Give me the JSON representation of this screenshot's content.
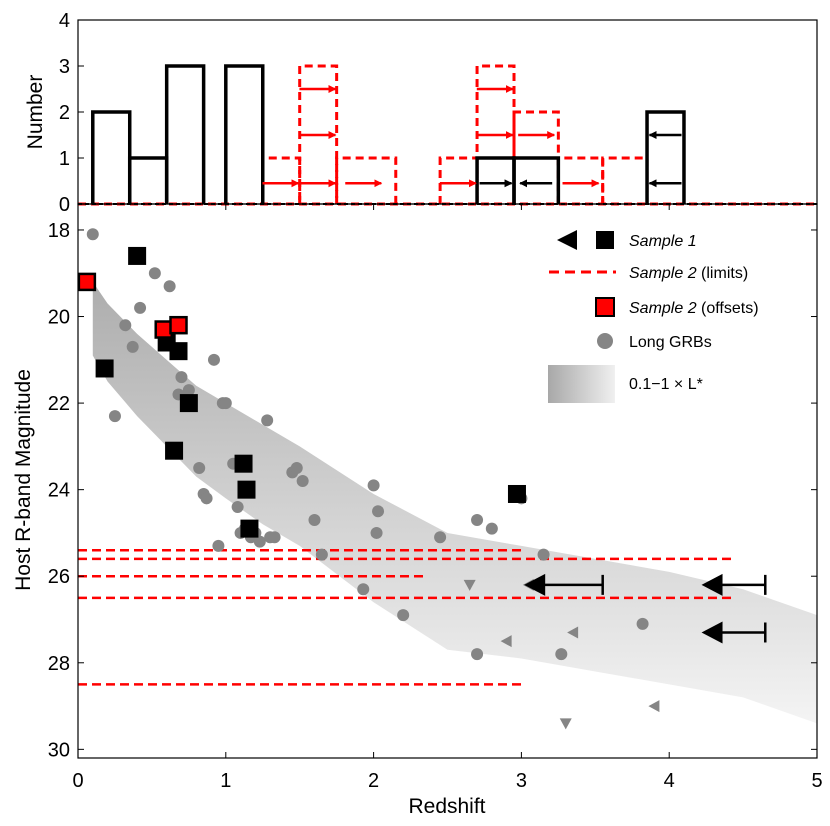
{
  "chart_data": [
    {
      "type": "histogram",
      "ylabel": "Number",
      "yticks": [
        "0",
        "1",
        "2",
        "3",
        "4"
      ],
      "ylim": [
        0,
        4
      ],
      "xlim": [
        0,
        5
      ],
      "bar_edges": [
        0.1,
        0.35,
        0.6,
        0.85,
        1.0,
        1.25,
        1.5,
        1.75,
        2.15,
        2.45,
        2.7,
        2.95,
        3.25,
        3.55,
        3.85,
        4.1,
        4.4
      ],
      "sample1": {
        "name": "Sample 1 (black)",
        "bins": [
          {
            "x0": 0.1,
            "x1": 0.35,
            "count": 2
          },
          {
            "x0": 0.35,
            "x1": 0.6,
            "count": 1
          },
          {
            "x0": 0.6,
            "x1": 0.85,
            "count": 3
          },
          {
            "x0": 1.0,
            "x1": 1.25,
            "count": 3
          },
          {
            "x0": 2.7,
            "x1": 2.95,
            "count": 1,
            "arrow": "right"
          },
          {
            "x0": 2.95,
            "x1": 3.25,
            "count": 1,
            "arrow": "left"
          },
          {
            "x0": 3.85,
            "x1": 4.1,
            "count": 2,
            "arrow": "left"
          }
        ]
      },
      "sample2": {
        "name": "Sample 2 limits (red dashed)",
        "bins": [
          {
            "x0": 1.25,
            "x1": 1.5,
            "count": 1
          },
          {
            "x0": 1.5,
            "x1": 1.75,
            "count": 3
          },
          {
            "x0": 1.75,
            "x1": 2.15,
            "count": 1
          },
          {
            "x0": 2.45,
            "x1": 2.7,
            "count": 1
          },
          {
            "x0": 2.7,
            "x1": 2.95,
            "count": 3
          },
          {
            "x0": 2.95,
            "x1": 3.25,
            "count": 2
          },
          {
            "x0": 3.25,
            "x1": 3.55,
            "count": 1
          },
          {
            "x0": 3.55,
            "x1": 3.85,
            "count": 1
          }
        ],
        "arrows": [
          {
            "x": 1.37,
            "y": 0.45
          },
          {
            "x": 1.62,
            "y": 0.45
          },
          {
            "x": 1.93,
            "y": 0.45
          },
          {
            "x": 1.62,
            "y": 1.5
          },
          {
            "x": 1.62,
            "y": 2.5
          },
          {
            "x": 2.57,
            "y": 0.45
          },
          {
            "x": 2.82,
            "y": 1.5
          },
          {
            "x": 2.82,
            "y": 2.5
          },
          {
            "x": 3.1,
            "y": 1.5
          },
          {
            "x": 3.4,
            "y": 0.45
          }
        ]
      }
    },
    {
      "type": "scatter",
      "xlabel": "Redshift",
      "ylabel": "Host R-band Magnitude",
      "xticks": [
        "0",
        "1",
        "2",
        "3",
        "4",
        "5"
      ],
      "yticks": [
        "18",
        "20",
        "22",
        "24",
        "26",
        "28",
        "30"
      ],
      "xlim": [
        0,
        5
      ],
      "ylim": [
        30.2,
        17.4
      ],
      "legend_position": "top-right",
      "legend": {
        "sample1_label": "Sample 1",
        "sample2_limits_label": "Sample 2",
        "sample2_limits_suffix": "(limits)",
        "sample2_offsets_label": "Sample 2",
        "sample2_offsets_suffix": "(offsets)",
        "long_grbs_label": "Long GRBs",
        "band_label": "0.1−1 × L*"
      },
      "band": {
        "name": "0.1−1 × L*",
        "z": [
          0.1,
          0.2,
          0.4,
          0.6,
          0.8,
          1.0,
          1.25,
          1.5,
          2.0,
          2.5,
          3.0,
          3.5,
          4.0,
          4.5,
          5.0
        ],
        "bright": [
          19.2,
          19.7,
          20.4,
          21.0,
          21.6,
          22.0,
          22.5,
          23.0,
          24.1,
          25.0,
          25.3,
          25.6,
          25.9,
          26.3,
          26.9
        ],
        "faint": [
          20.9,
          21.5,
          22.3,
          23.0,
          23.7,
          24.2,
          24.8,
          25.3,
          26.6,
          27.7,
          27.9,
          28.2,
          28.5,
          28.8,
          29.4
        ]
      },
      "long_grbs": [
        [
          0.1,
          18.1
        ],
        [
          0.25,
          22.3
        ],
        [
          0.32,
          20.2
        ],
        [
          0.37,
          20.7
        ],
        [
          0.42,
          19.8
        ],
        [
          0.52,
          19.0
        ],
        [
          0.62,
          19.3
        ],
        [
          0.68,
          21.8
        ],
        [
          0.7,
          21.4
        ],
        [
          0.75,
          21.7
        ],
        [
          0.82,
          23.5
        ],
        [
          0.85,
          24.1
        ],
        [
          0.87,
          24.2
        ],
        [
          0.92,
          21.0
        ],
        [
          0.95,
          25.3
        ],
        [
          0.98,
          22.0
        ],
        [
          1.0,
          22.0
        ],
        [
          1.05,
          23.4
        ],
        [
          1.08,
          24.4
        ],
        [
          1.1,
          25.0
        ],
        [
          1.13,
          24.9
        ],
        [
          1.17,
          25.1
        ],
        [
          1.2,
          25.0
        ],
        [
          1.23,
          25.2
        ],
        [
          1.28,
          22.4
        ],
        [
          1.3,
          25.1
        ],
        [
          1.33,
          25.1
        ],
        [
          1.45,
          23.6
        ],
        [
          1.48,
          23.5
        ],
        [
          1.52,
          23.8
        ],
        [
          1.6,
          24.7
        ],
        [
          1.65,
          25.5
        ],
        [
          1.93,
          26.3
        ],
        [
          2.0,
          23.9
        ],
        [
          2.03,
          24.5
        ],
        [
          2.02,
          25.0
        ],
        [
          2.2,
          26.9
        ],
        [
          2.45,
          25.1
        ],
        [
          2.7,
          27.8
        ],
        [
          2.7,
          24.7
        ],
        [
          2.8,
          24.9
        ],
        [
          3.0,
          24.2
        ],
        [
          3.15,
          25.5
        ],
        [
          3.27,
          27.8
        ],
        [
          3.82,
          27.1
        ]
      ],
      "grb_limits_down": [
        [
          2.65,
          26.2
        ],
        [
          3.3,
          29.4
        ]
      ],
      "grb_limits_left": [
        [
          2.9,
          27.5
        ],
        [
          3.05,
          26.2
        ],
        [
          3.35,
          27.3
        ],
        [
          3.9,
          29.0
        ]
      ],
      "sample1_points": [
        [
          0.18,
          21.2
        ],
        [
          0.4,
          18.6
        ],
        [
          0.6,
          20.6
        ],
        [
          0.65,
          23.1
        ],
        [
          0.68,
          20.8
        ],
        [
          0.75,
          22.0
        ],
        [
          1.12,
          23.4
        ],
        [
          1.14,
          24.0
        ],
        [
          1.16,
          24.9
        ],
        [
          2.97,
          24.1
        ]
      ],
      "sample1_upper_limits": [
        {
          "mag": 26.2,
          "z_min": 3.1,
          "z_max": 3.55
        },
        {
          "mag": 26.2,
          "z_min": 4.3,
          "z_max": 4.65
        },
        {
          "mag": 27.3,
          "z_min": 4.3,
          "z_max": 4.65
        }
      ],
      "sample2_offsets": [
        [
          0.06,
          19.2
        ],
        [
          0.58,
          20.3
        ],
        [
          0.68,
          20.2
        ]
      ],
      "sample2_limits": [
        {
          "mag": 25.4,
          "z_min": 0,
          "z_max": 3.0
        },
        {
          "mag": 25.6,
          "z_min": 0,
          "z_max": 4.45
        },
        {
          "mag": 26.0,
          "z_min": 0,
          "z_max": 2.35
        },
        {
          "mag": 26.5,
          "z_min": 0,
          "z_max": 4.45
        },
        {
          "mag": 28.5,
          "z_min": 0,
          "z_max": 3.0
        }
      ]
    }
  ]
}
